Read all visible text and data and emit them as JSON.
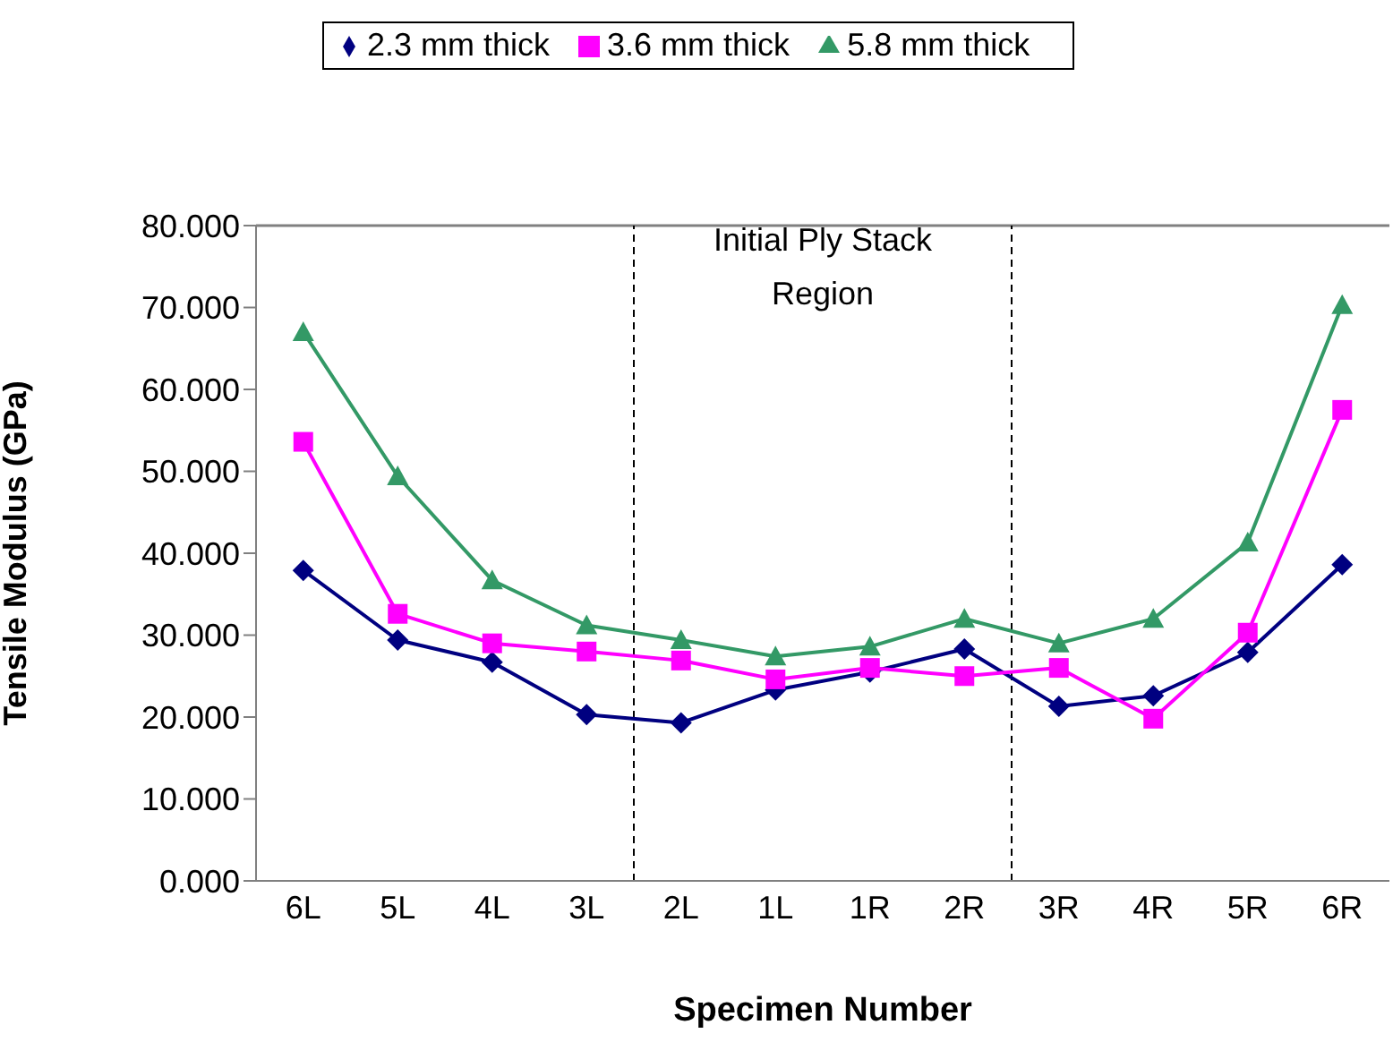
{
  "chart_data": {
    "type": "line",
    "xlabel": "Specimen  Number",
    "ylabel": "Tensile Modulus (GPa)",
    "categories": [
      "6L",
      "5L",
      "4L",
      "3L",
      "2L",
      "1L",
      "1R",
      "2R",
      "3R",
      "4R",
      "5R",
      "6R"
    ],
    "series": [
      {
        "name": "2.3 mm thick",
        "color": "#000080",
        "marker": "diamond",
        "values": [
          37.9,
          29.4,
          26.7,
          20.3,
          19.3,
          23.3,
          25.5,
          28.3,
          21.3,
          22.6,
          27.9,
          38.6
        ]
      },
      {
        "name": "3.6 mm thick",
        "color": "#ff00ff",
        "marker": "square",
        "values": [
          53.6,
          32.6,
          29.0,
          28.0,
          26.9,
          24.6,
          26.0,
          25.0,
          26.0,
          19.8,
          30.3,
          57.5
        ]
      },
      {
        "name": "5.8 mm thick",
        "color": "#339966",
        "marker": "triangle",
        "values": [
          67.0,
          49.4,
          36.7,
          31.2,
          29.4,
          27.4,
          28.6,
          32.0,
          29.0,
          32.0,
          41.3,
          70.3
        ]
      }
    ],
    "ylim": [
      0,
      80
    ],
    "yticks": [
      {
        "value": 0,
        "label": "0.000"
      },
      {
        "value": 10,
        "label": "10.000"
      },
      {
        "value": 20,
        "label": "20.000"
      },
      {
        "value": 30,
        "label": "30.000"
      },
      {
        "value": 40,
        "label": "40.000"
      },
      {
        "value": 50,
        "label": "50.000"
      },
      {
        "value": 60,
        "label": "60.000"
      },
      {
        "value": 70,
        "label": "70.000"
      },
      {
        "value": 80,
        "label": "80.000"
      }
    ],
    "annotations": [
      "Initial Ply Stack Region"
    ],
    "grid": false,
    "legend": "top",
    "line_style": "solid"
  }
}
